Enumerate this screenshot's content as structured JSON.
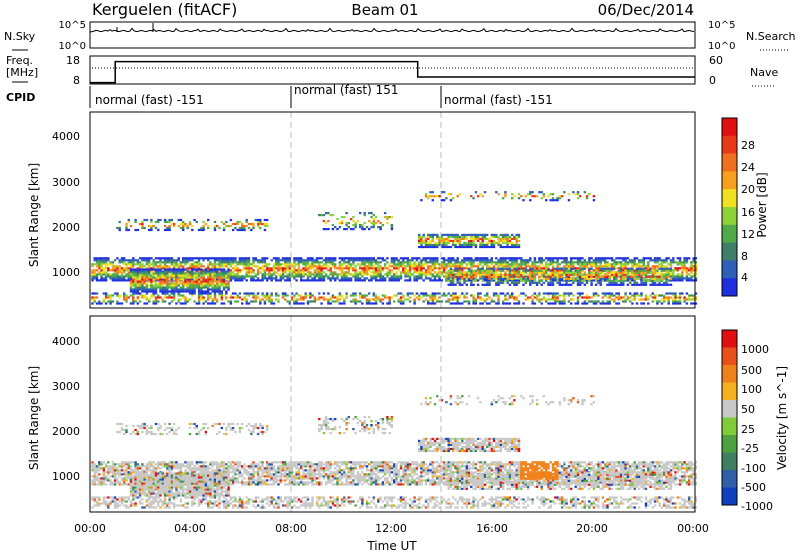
{
  "header": {
    "station": "Kerguelen (fitACF)",
    "beam": "Beam 01",
    "date": "06/Dec/2014"
  },
  "colors": {
    "power_bins": [
      "#1f2fe0",
      "#2d5fb8",
      "#3f7f6a",
      "#4faa4a",
      "#8ed23a",
      "#f0e020",
      "#f7a020",
      "#f07020",
      "#e83a18",
      "#e01010"
    ],
    "velocity_bins": [
      "#1040c0",
      "#2e5fa8",
      "#3e7f60",
      "#4ca040",
      "#7fcc38",
      "#c8c8c8",
      "#f5b020",
      "#f08018",
      "#e85018",
      "#e01010"
    ],
    "line": "#000000",
    "gray_ticks": "#bbbbbb"
  },
  "chart_data": [
    {
      "type": "line",
      "name": "sky-noise-panel",
      "left_label": "N.Sky",
      "right_label": "N.Search",
      "ticks_left": [
        "10^5",
        "10^0"
      ],
      "ticks_right": [
        "10^5",
        "10^0"
      ],
      "x_range": [
        0,
        24
      ]
    },
    {
      "type": "line",
      "name": "frequency-panel",
      "left_label": "Freq.",
      "left_unit": "[MHz]",
      "right_label": "Nave",
      "ticks_left": [
        "18",
        "8"
      ],
      "ticks_right": [
        "60",
        "0"
      ],
      "ylim": [
        8,
        18
      ],
      "x_range": [
        0,
        24
      ],
      "frequency_steps": [
        {
          "x": 0.0,
          "y": 8.5
        },
        {
          "x": 1.0,
          "y": 8.5
        },
        {
          "x": 1.0,
          "y": 16.0
        },
        {
          "x": 13.0,
          "y": 16.0
        },
        {
          "x": 13.0,
          "y": 10.5
        },
        {
          "x": 24.0,
          "y": 10.5
        }
      ]
    },
    {
      "type": "table",
      "name": "cpid-strip",
      "label": "CPID",
      "segments": [
        {
          "start_ut": 0.0,
          "text": "normal (fast) -151"
        },
        {
          "start_ut": 8.0,
          "text": "normal (fast) 151"
        },
        {
          "start_ut": 14.0,
          "text": "normal (fast) -151"
        }
      ]
    },
    {
      "type": "heatmap",
      "name": "power-panel",
      "ylabel": "Slant Range [km]",
      "colorbar_label": "Power [dB]",
      "colorbar_ticks": [
        "28",
        "24",
        "20",
        "16",
        "12",
        "8",
        "4"
      ],
      "y_ticks": [
        "4000",
        "3000",
        "2000",
        "1000"
      ],
      "ylim": [
        200,
        4600
      ],
      "x_range": [
        0,
        24
      ],
      "segment_boundaries_ut": [
        8.0,
        14.0
      ]
    },
    {
      "type": "heatmap",
      "name": "velocity-panel",
      "ylabel": "Slant Range [km]",
      "colorbar_label": "Velocity [m s^-1]",
      "colorbar_ticks": [
        "1000",
        "500",
        "100",
        "50",
        "25",
        "-25",
        "-100",
        "-500",
        "-1000"
      ],
      "y_ticks": [
        "4000",
        "3000",
        "2000",
        "1000"
      ],
      "ylim": [
        200,
        4600
      ],
      "x_range": [
        0,
        24
      ],
      "x_ticks": [
        "00:00",
        "04:00",
        "08:00",
        "12:00",
        "16:00",
        "20:00",
        "00:00"
      ],
      "xlabel": "Time UT",
      "segment_boundaries_ut": [
        8.0,
        14.0
      ]
    }
  ]
}
